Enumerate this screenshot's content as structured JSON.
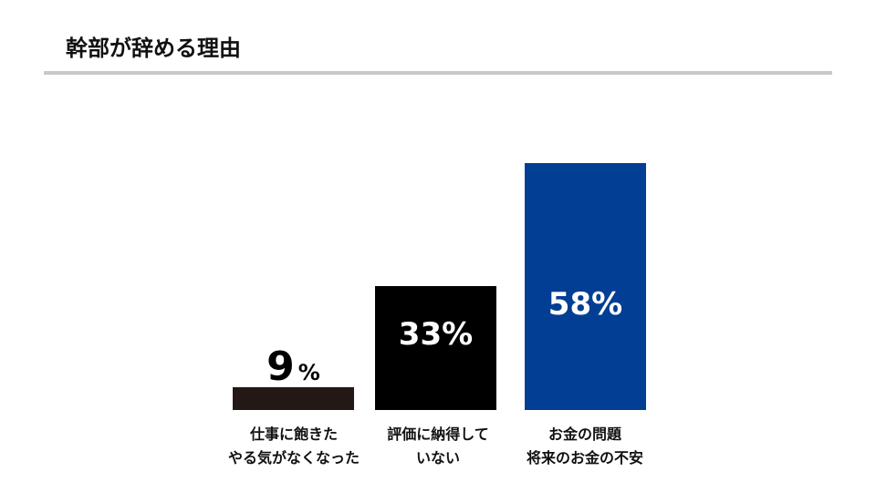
{
  "page": {
    "title": "幹部が辞める理由"
  },
  "colors": {
    "bar_1": "#231815",
    "bar_2": "#000000",
    "bar_3": "#023e93",
    "label_inside": "#ffffff",
    "label_outside": "#000000",
    "rule": "#c8c8c8"
  },
  "chart_data": {
    "type": "bar",
    "title": "",
    "xlabel": "",
    "ylabel": "",
    "ylim": [
      0,
      60
    ],
    "grid": false,
    "legend": "none",
    "categories": [
      [
        "仕事に飽きた",
        "やる気がなくなった"
      ],
      [
        "評価に納得して",
        "いない"
      ],
      [
        "お金の問題",
        "将来のお金の不安"
      ]
    ],
    "values": [
      9,
      33,
      58
    ],
    "data_labels": [
      {
        "number": "9",
        "unit": "%"
      },
      {
        "number": "33",
        "unit": "%"
      },
      {
        "number": "58",
        "unit": "%"
      }
    ]
  }
}
